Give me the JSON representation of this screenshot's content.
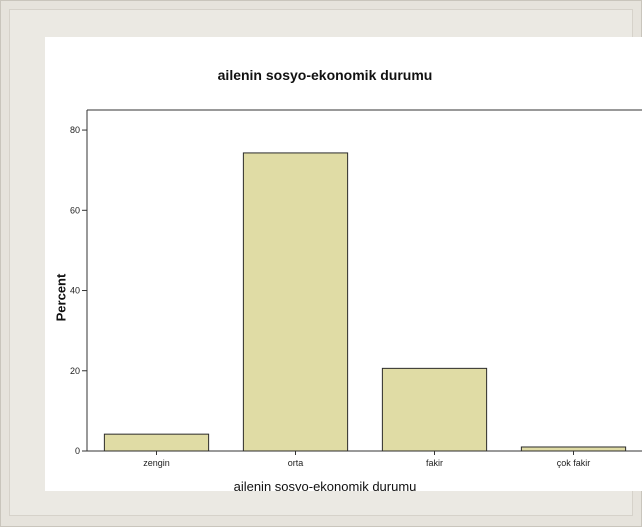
{
  "chart_data": {
    "type": "bar",
    "title": "ailenin sosyo-ekonomik durumu",
    "xlabel": "ailenin sosyo-ekonomik durumu",
    "ylabel": "Percent",
    "categories": [
      "zengin",
      "orta",
      "fakir",
      "çok fakir"
    ],
    "values": [
      4.2,
      74.3,
      20.6,
      1.0
    ],
    "ylim": [
      0,
      85
    ],
    "yticks": [
      0,
      20,
      40,
      60,
      80
    ],
    "bar_color": "#e0dca5",
    "bar_edge_color": "#2b2b2b",
    "grid": false
  }
}
